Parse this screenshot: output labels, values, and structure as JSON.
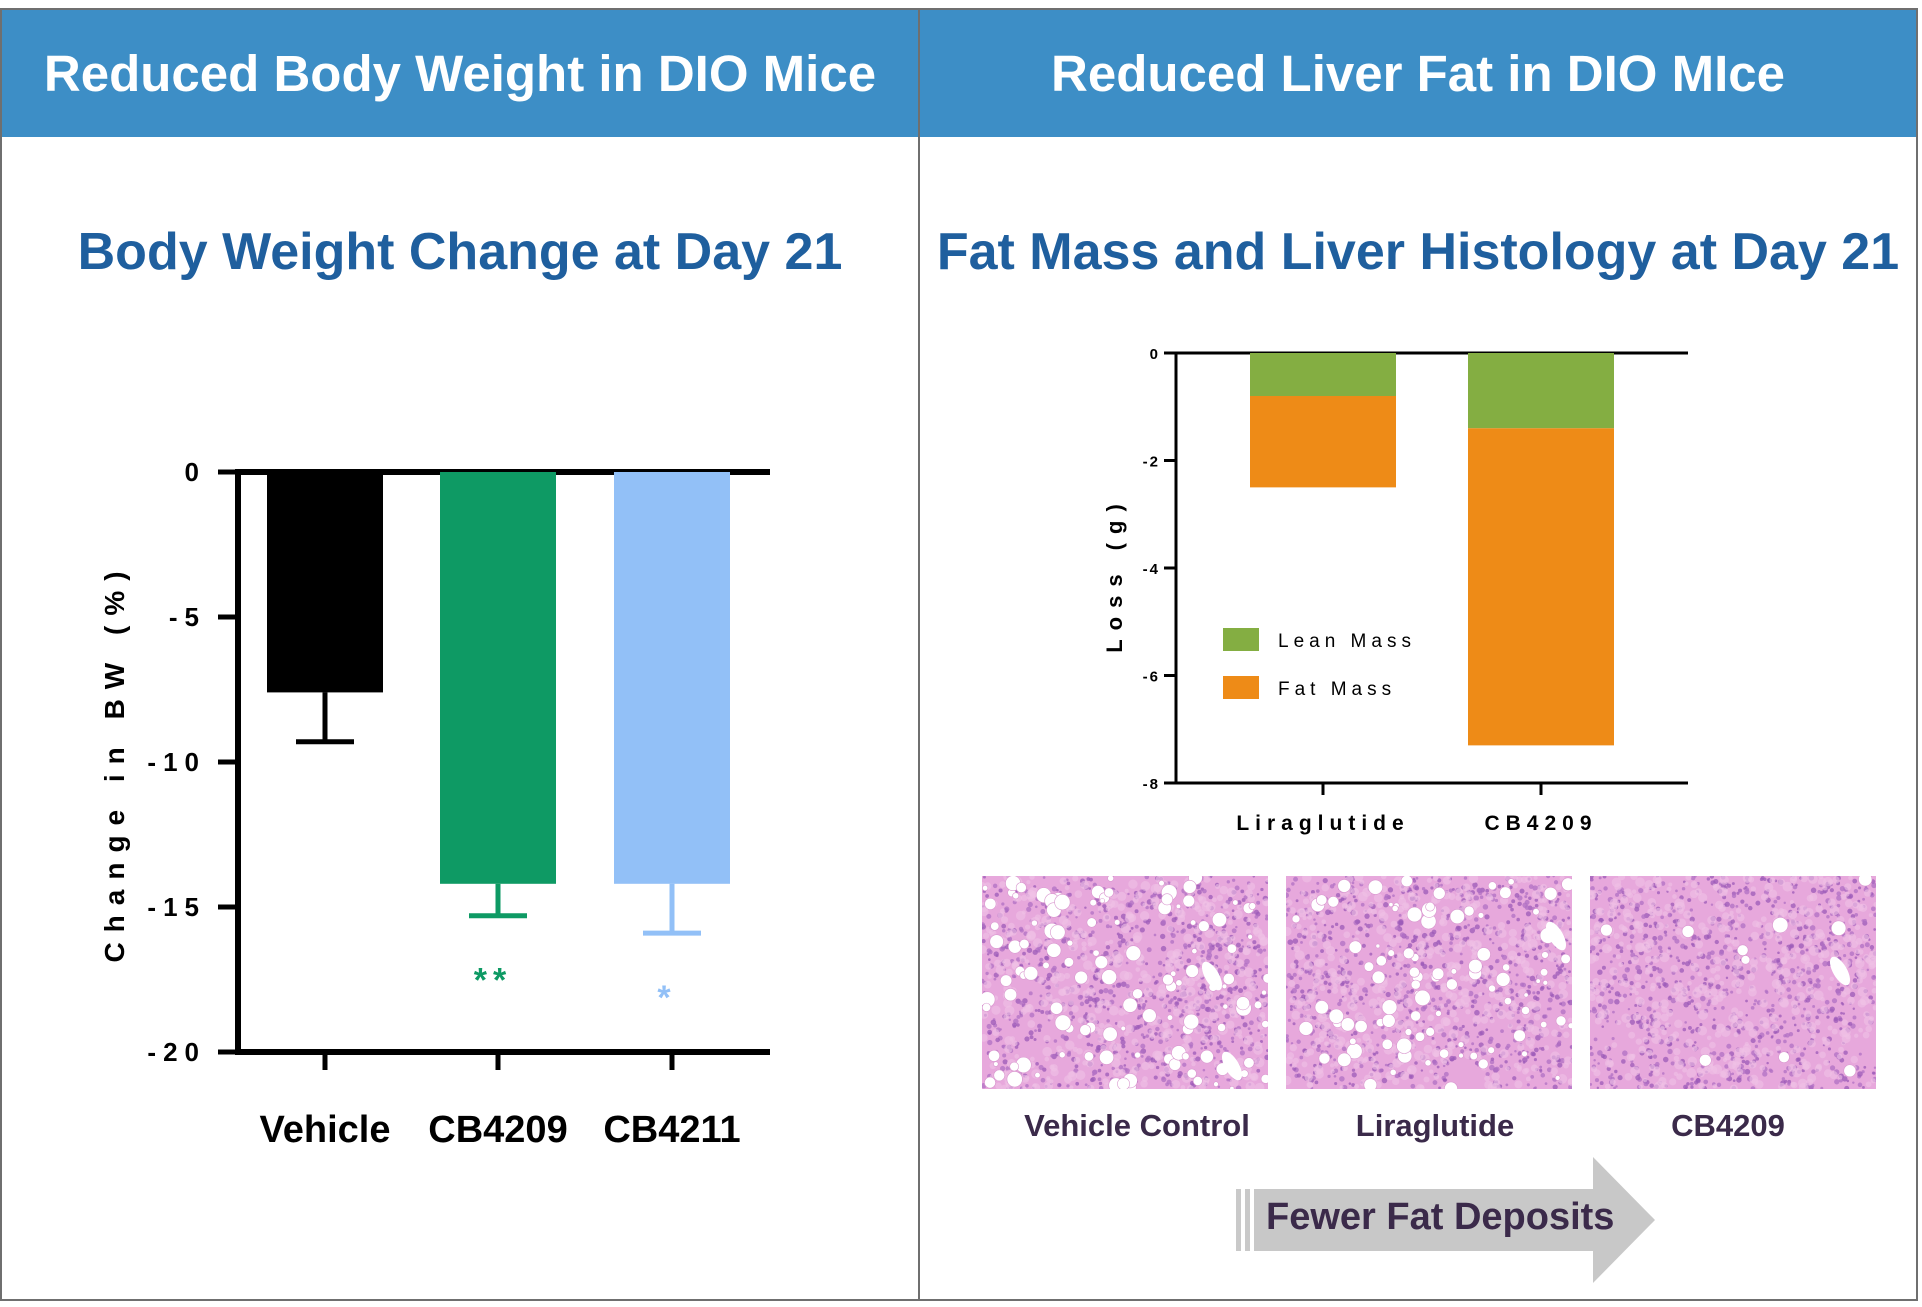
{
  "left_panel": {
    "header": "Reduced Body Weight in DIO Mice",
    "title": "Body Weight Change at Day 21"
  },
  "right_panel": {
    "header": "Reduced Liver Fat in DIO MIce",
    "title": "Fat Mass and Liver Histology at Day 21",
    "histology": {
      "labels": [
        "Vehicle Control",
        "Liraglutide",
        "CB4209"
      ],
      "arrow_text": "Fewer Fat Deposits"
    }
  },
  "chart_data": [
    {
      "type": "bar",
      "ylabel": "Change in BW (%)",
      "ylim": [
        -20,
        0
      ],
      "yticks": [
        0,
        -5,
        -10,
        -15,
        -20
      ],
      "ytick_labels": [
        "0",
        "-5",
        "-10",
        "-15",
        "-20"
      ],
      "categories": [
        "Vehicle",
        "CB4209",
        "CB4211"
      ],
      "values": [
        -7.6,
        -14.2,
        -14.2
      ],
      "errors": [
        1.7,
        1.1,
        1.7
      ],
      "colors": [
        "#000000",
        "#0e9a64",
        "#92c0f7"
      ],
      "significance": [
        "",
        "**",
        "*"
      ]
    },
    {
      "type": "bar",
      "stacked": true,
      "ylabel": "Loss (g)",
      "ylim": [
        -8,
        0
      ],
      "yticks": [
        0,
        -2,
        -4,
        -6,
        -8
      ],
      "ytick_labels": [
        "0",
        "-2",
        "-4",
        "-6",
        "-8"
      ],
      "categories": [
        "Liraglutide",
        "CB4209"
      ],
      "series": [
        {
          "name": "Lean Mass",
          "color": "#84ae42",
          "values": [
            -0.8,
            -1.4
          ]
        },
        {
          "name": "Fat Mass",
          "color": "#ee8b17",
          "values": [
            -1.7,
            -5.9
          ]
        }
      ],
      "legend_position": "middle-left"
    }
  ]
}
